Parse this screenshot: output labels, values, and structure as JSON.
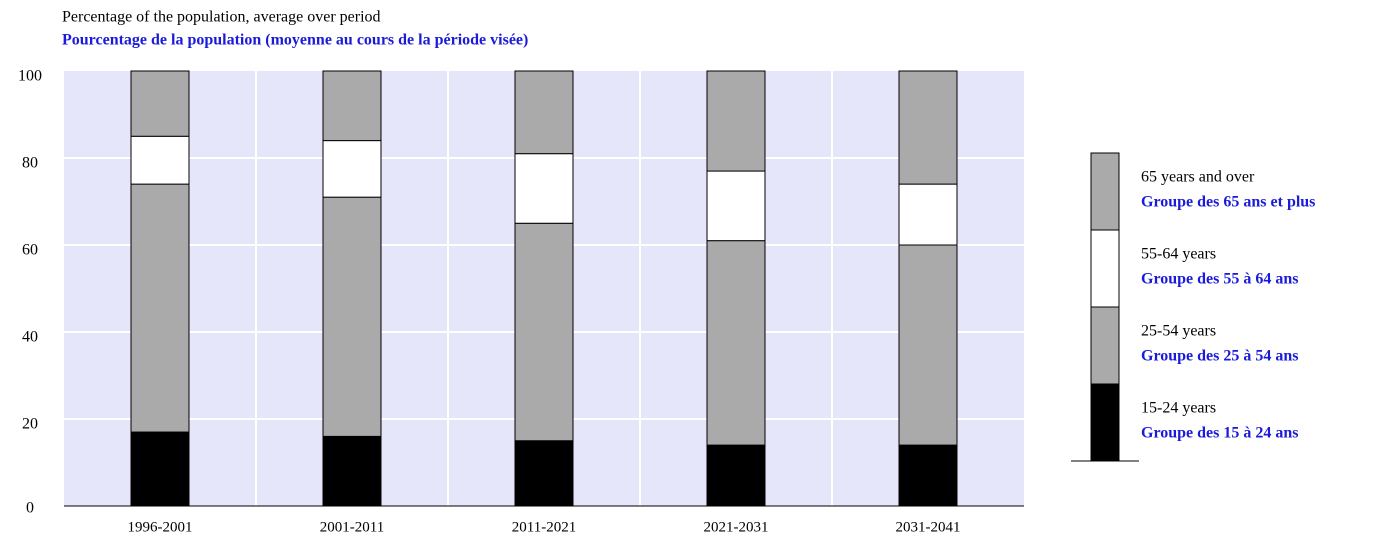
{
  "chart_data": {
    "type": "stacked_bar",
    "title": "Percentage of the population, average over period",
    "subtitle": "Pourcentage de la population (moyenne au cours de la période visée)",
    "categories": [
      "1996-2001",
      "2001-2011",
      "2011-2021",
      "2021-2031",
      "2031-2041"
    ],
    "series": [
      {
        "name": "15-24 years",
        "name_fr": "Groupe des 15 à 24 ans",
        "color": "#000000",
        "values": [
          17,
          16,
          15,
          14,
          14
        ]
      },
      {
        "name": "25-54 years",
        "name_fr": "Groupe des 25 à 54 ans",
        "color": "#aaaaaa",
        "values": [
          57,
          55,
          50,
          47,
          46
        ]
      },
      {
        "name": "55-64 years",
        "name_fr": "Groupe des 55 à 64 ans",
        "color": "#ffffff",
        "values": [
          11,
          13,
          16,
          16,
          14
        ]
      },
      {
        "name": "65 years and over",
        "name_fr": "Groupe des 65 ans et plus",
        "color": "#aaaaaa",
        "values": [
          15,
          16,
          19,
          23,
          26
        ]
      }
    ],
    "ylim": [
      0,
      100
    ],
    "yticks": [
      0,
      20,
      40,
      60,
      80,
      100
    ],
    "grid": true,
    "background": "#e6e6fa"
  }
}
